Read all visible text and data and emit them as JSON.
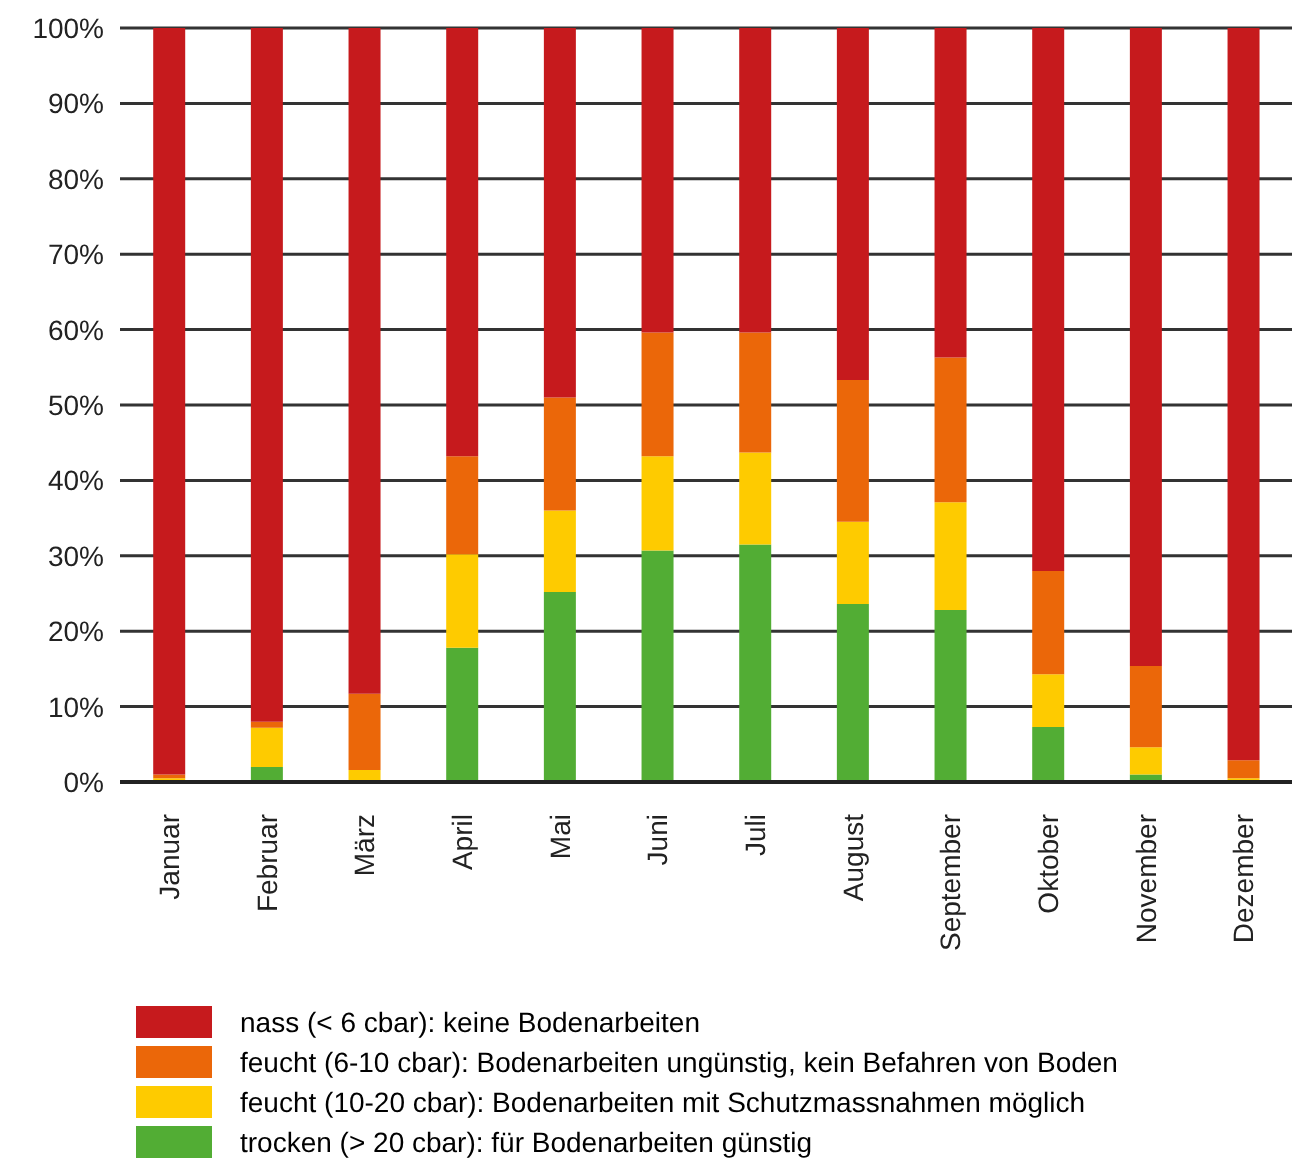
{
  "chart_data": {
    "type": "bar",
    "stacked": true,
    "categories": [
      "Januar",
      "Februar",
      "März",
      "April",
      "Mai",
      "Juni",
      "Juli",
      "August",
      "September",
      "Oktober",
      "November",
      "Dezember"
    ],
    "series": [
      {
        "name": "trocken (> 20 cbar): für Bodenarbeiten günstig",
        "color": "#52ad34",
        "values": [
          0,
          2,
          0,
          17.8,
          25.2,
          30.7,
          31.5,
          23.6,
          22.8,
          7.3,
          1,
          0
        ]
      },
      {
        "name": "feucht (10-20 cbar): Bodenarbeiten mit Schutzmassnahmen möglich",
        "color": "#fecb00",
        "values": [
          0.5,
          5.2,
          1.6,
          12.4,
          10.8,
          12.5,
          12.2,
          10.9,
          14.3,
          7,
          3.6,
          0.5
        ]
      },
      {
        "name": "feucht (6-10 cbar): Bodenarbeiten ungünstig, kein Befahren von Boden",
        "color": "#eb6709",
        "values": [
          0.5,
          0.8,
          10.1,
          13,
          15,
          16.4,
          15.9,
          18.8,
          19.2,
          13.7,
          10.8,
          2.4
        ]
      },
      {
        "name": "nass (< 6 cbar): keine Bodenarbeiten",
        "color": "#c61a1d",
        "values": [
          99,
          92,
          88.3,
          56.8,
          49,
          40.4,
          40.4,
          46.7,
          43.7,
          72,
          84.6,
          97.1
        ]
      }
    ],
    "ylim": [
      0,
      100
    ],
    "yticks": [
      {
        "value": 0,
        "label": "0%"
      },
      {
        "value": 10,
        "label": "10%"
      },
      {
        "value": 20,
        "label": "20%"
      },
      {
        "value": 30,
        "label": "30%"
      },
      {
        "value": 40,
        "label": "40%"
      },
      {
        "value": 50,
        "label": "50%"
      },
      {
        "value": 60,
        "label": "60%"
      },
      {
        "value": 70,
        "label": "70%"
      },
      {
        "value": 80,
        "label": "80%"
      },
      {
        "value": 90,
        "label": "90%"
      },
      {
        "value": 100,
        "label": "100%"
      }
    ],
    "grid": "y",
    "legend": "bottom"
  }
}
